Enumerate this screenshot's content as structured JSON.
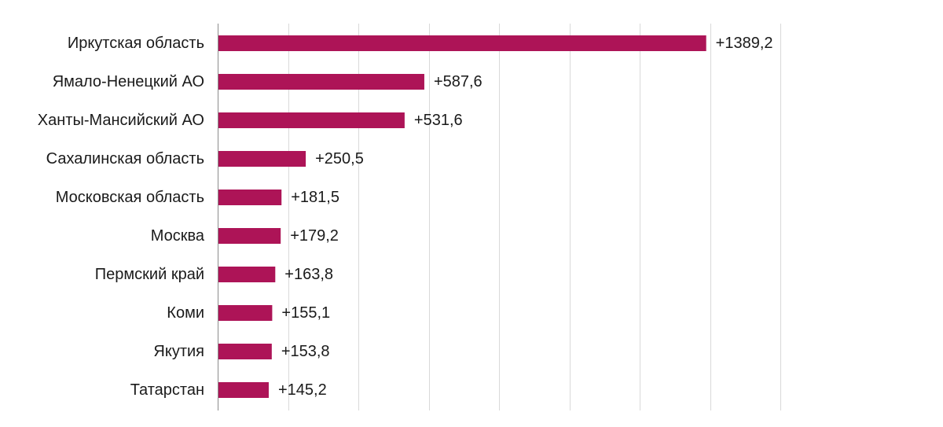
{
  "colors": {
    "bar": "#ad1457",
    "grid": "#d9d9d9",
    "axis": "#8c8c8c",
    "text": "#1a1a1a",
    "background": "#ffffff"
  },
  "chart_data": {
    "type": "bar",
    "orientation": "horizontal",
    "title": "",
    "xlabel": "",
    "ylabel": "",
    "categories": [
      "Иркутская область",
      "Ямало-Ненецкий АО",
      "Ханты-Мансийский АО",
      "Сахалинская область",
      "Московская область",
      "Москва",
      "Пермский край",
      "Коми",
      "Якутия",
      "Татарстан"
    ],
    "values": [
      1389.2,
      587.6,
      531.6,
      250.5,
      181.5,
      179.2,
      163.8,
      155.1,
      153.8,
      145.2
    ],
    "value_labels": [
      "+1389,2",
      "+587,6",
      "+531,6",
      "+250,5",
      "+181,5",
      "+179,2",
      "+163,8",
      "+155,1",
      "+153,8",
      "+145,2"
    ],
    "xlim": [
      0,
      1600
    ],
    "grid": true,
    "legend": "none"
  }
}
